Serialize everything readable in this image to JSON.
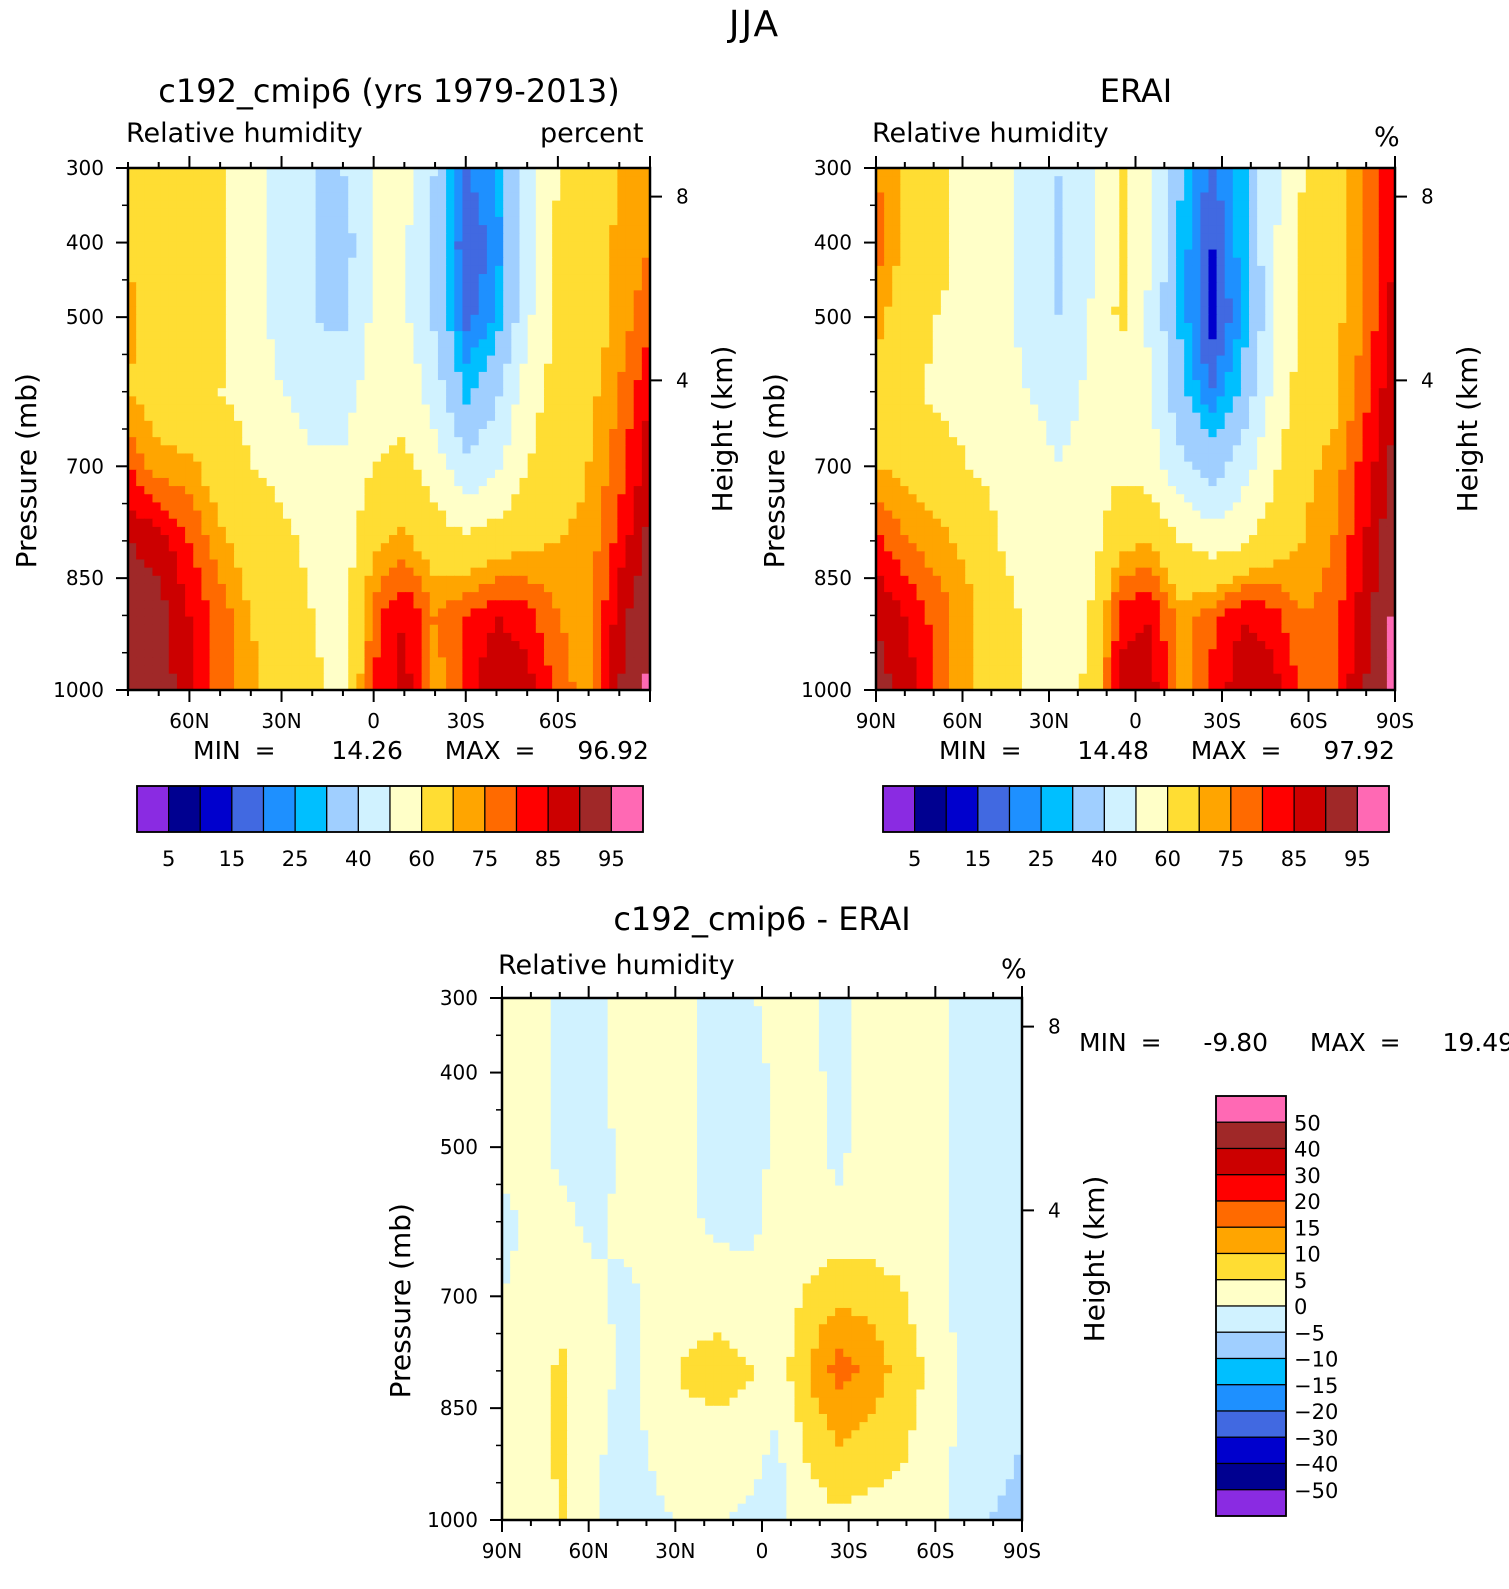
{
  "figure_title": "JJA",
  "colors": {
    "rh_levels": [
      "#8A2BE2",
      "#000090",
      "#0000CD",
      "#4169E1",
      "#1E90FF",
      "#00BFFF",
      "#A0CFFF",
      "#D0F2FF",
      "#FFFFC8",
      "#FFDD33",
      "#FFA500",
      "#FF6A00",
      "#FF0000",
      "#CC0000",
      "#A02828",
      "#FF69B4"
    ],
    "diff_levels": [
      "#8A2BE2",
      "#000090",
      "#0000CD",
      "#4169E1",
      "#1E90FF",
      "#00BFFF",
      "#A0CFFF",
      "#D0F2FF",
      "#FFFFC8",
      "#FFDD33",
      "#FFA500",
      "#FF6A00",
      "#FF0000",
      "#CC0000",
      "#A02828",
      "#FF69B4"
    ]
  },
  "chart_data": [
    {
      "type": "heatmap",
      "title": "c192_cmip6 (yrs 1979-2013)",
      "variable_label": "Relative humidity",
      "units_label": "percent",
      "ylabel": "Pressure (mb)",
      "ylabel_right": "Height (km)",
      "x_ticklabels": [
        "60N",
        "30N",
        "0",
        "30S",
        "60S"
      ],
      "x_ticks_lat": [
        60,
        30,
        0,
        -30,
        -60
      ],
      "xlim": [
        80,
        -90
      ],
      "y_ticklabels": [
        "300",
        "400",
        "500",
        "700",
        "850",
        "1000"
      ],
      "y_ticks": [
        300,
        400,
        500,
        700,
        850,
        1000
      ],
      "ylim": [
        300,
        1000
      ],
      "right_ticklabels": [
        "8",
        "4"
      ],
      "right_ticks_km": [
        8,
        4
      ],
      "min_label": "MIN =",
      "min_value": "14.26",
      "max_label": "MAX =",
      "max_value": "96.92",
      "colorbar_labels": [
        "5",
        "15",
        "25",
        "40",
        "60",
        "75",
        "85",
        "95"
      ],
      "field": [
        [
          65,
          60,
          65,
          62,
          55,
          45,
          40,
          40,
          52,
          55,
          40,
          20,
          25,
          45,
          60,
          60,
          70,
          72
        ],
        [
          70,
          62,
          65,
          62,
          55,
          45,
          40,
          35,
          50,
          52,
          35,
          15,
          22,
          45,
          62,
          65,
          72,
          75
        ],
        [
          72,
          65,
          65,
          62,
          55,
          45,
          40,
          38,
          52,
          52,
          38,
          18,
          25,
          48,
          62,
          65,
          72,
          78
        ],
        [
          70,
          65,
          62,
          60,
          58,
          50,
          45,
          45,
          55,
          58,
          45,
          28,
          38,
          55,
          65,
          68,
          75,
          85
        ],
        [
          80,
          72,
          72,
          65,
          60,
          58,
          52,
          52,
          60,
          62,
          55,
          42,
          48,
          60,
          65,
          70,
          78,
          88
        ],
        [
          90,
          88,
          80,
          72,
          65,
          62,
          58,
          55,
          68,
          72,
          65,
          62,
          65,
          68,
          70,
          72,
          82,
          92
        ],
        [
          93,
          92,
          85,
          78,
          70,
          65,
          60,
          55,
          78,
          85,
          75,
          80,
          85,
          82,
          75,
          72,
          88,
          95
        ],
        [
          95,
          94,
          86,
          78,
          72,
          65,
          62,
          58,
          80,
          88,
          72,
          82,
          90,
          88,
          78,
          72,
          90,
          96
        ]
      ]
    },
    {
      "type": "heatmap",
      "title": "ERAI",
      "variable_label": "Relative humidity",
      "units_label": "%",
      "ylabel": "Pressure (mb)",
      "ylabel_right": "Height (km)",
      "x_ticklabels": [
        "90N",
        "60N",
        "30N",
        "0",
        "30S",
        "60S",
        "90S"
      ],
      "x_ticks_lat": [
        90,
        60,
        30,
        0,
        -30,
        -60,
        -90
      ],
      "xlim": [
        90,
        -90
      ],
      "y_ticklabels": [
        "300",
        "400",
        "500",
        "700",
        "850",
        "1000"
      ],
      "y_ticks": [
        300,
        400,
        500,
        700,
        850,
        1000
      ],
      "ylim": [
        300,
        1000
      ],
      "right_ticklabels": [
        "8",
        "4"
      ],
      "right_ticks_km": [
        8,
        4
      ],
      "min_label": "MIN =",
      "min_value": "14.48",
      "max_label": "MAX =",
      "max_value": "97.92",
      "colorbar_labels": [
        "5",
        "15",
        "25",
        "40",
        "60",
        "75",
        "85",
        "95"
      ],
      "field": [
        [
          75,
          68,
          62,
          58,
          55,
          45,
          40,
          48,
          62,
          52,
          30,
          18,
          28,
          48,
          60,
          68,
          75,
          85
        ],
        [
          78,
          68,
          62,
          58,
          55,
          45,
          38,
          48,
          62,
          50,
          28,
          15,
          28,
          48,
          62,
          68,
          75,
          85
        ],
        [
          72,
          65,
          60,
          58,
          55,
          45,
          40,
          50,
          62,
          48,
          28,
          12,
          25,
          48,
          62,
          68,
          75,
          88
        ],
        [
          68,
          62,
          58,
          56,
          55,
          50,
          45,
          52,
          58,
          50,
          32,
          20,
          32,
          52,
          65,
          68,
          78,
          90
        ],
        [
          70,
          68,
          65,
          60,
          58,
          55,
          50,
          55,
          58,
          55,
          42,
          35,
          45,
          58,
          68,
          72,
          82,
          92
        ],
        [
          82,
          75,
          72,
          68,
          60,
          55,
          50,
          55,
          68,
          70,
          60,
          55,
          58,
          65,
          70,
          75,
          85,
          95
        ],
        [
          90,
          85,
          78,
          72,
          65,
          58,
          52,
          60,
          82,
          85,
          72,
          78,
          85,
          82,
          75,
          78,
          88,
          96
        ],
        [
          92,
          88,
          78,
          72,
          65,
          58,
          55,
          62,
          88,
          88,
          72,
          82,
          88,
          88,
          78,
          80,
          90,
          97
        ]
      ]
    },
    {
      "type": "heatmap",
      "title": "c192_cmip6 - ERAI",
      "variable_label": "Relative humidity",
      "units_label": "%",
      "ylabel": "Pressure (mb)",
      "ylabel_right": "Height (km)",
      "x_ticklabels": [
        "90N",
        "60N",
        "30N",
        "0",
        "30S",
        "60S",
        "90S"
      ],
      "x_ticks_lat": [
        90,
        60,
        30,
        0,
        -30,
        -60,
        -90
      ],
      "xlim": [
        90,
        -90
      ],
      "y_ticklabels": [
        "300",
        "400",
        "500",
        "700",
        "850",
        "1000"
      ],
      "y_ticks": [
        300,
        400,
        500,
        700,
        850,
        1000
      ],
      "ylim": [
        300,
        1000
      ],
      "right_ticklabels": [
        "8",
        "4"
      ],
      "right_ticks_km": [
        8,
        4
      ],
      "min_label": "MIN =",
      "min_value": "-9.80",
      "max_label": "MAX =",
      "max_value": "19.49",
      "colorbar_labels": [
        "50",
        "40",
        "30",
        "20",
        "15",
        "10",
        "5",
        "0",
        "−5",
        "−10",
        "−15",
        "−20",
        "−30",
        "−40",
        "−50"
      ],
      "field": [
        [
          2,
          2,
          -1,
          -1,
          1,
          3,
          2,
          -2,
          -1,
          2,
          1,
          -2,
          2,
          3,
          1,
          -1,
          -3,
          -3
        ],
        [
          2,
          1,
          -1,
          -1,
          2,
          2,
          1,
          -2,
          -2,
          1,
          1,
          -1,
          2,
          2,
          1,
          -1,
          -2,
          -3
        ],
        [
          1,
          1,
          -1,
          -2,
          1,
          1,
          1,
          -2,
          -2,
          1,
          1,
          -1,
          2,
          2,
          1,
          -1,
          -2,
          -3
        ],
        [
          -1,
          1,
          1,
          -1,
          1,
          1,
          1,
          -1,
          -1,
          1,
          1,
          1,
          2,
          1,
          1,
          -1,
          -2,
          -2
        ],
        [
          0,
          1,
          2,
          1,
          -1,
          1,
          2,
          3,
          1,
          1,
          6,
          9,
          8,
          6,
          2,
          -1,
          -2,
          -2
        ],
        [
          1,
          3,
          6,
          2,
          -1,
          1,
          6,
          7,
          6,
          2,
          10,
          17,
          14,
          8,
          4,
          -1,
          -2,
          -3
        ],
        [
          1,
          4,
          6,
          1,
          -2,
          1,
          2,
          3,
          2,
          -1,
          6,
          10,
          8,
          6,
          3,
          -1,
          -4,
          -5
        ],
        [
          1,
          3,
          5,
          1,
          -3,
          -1,
          1,
          1,
          -1,
          -1,
          2,
          4,
          3,
          3,
          1,
          -1,
          -5,
          -6
        ]
      ]
    }
  ]
}
